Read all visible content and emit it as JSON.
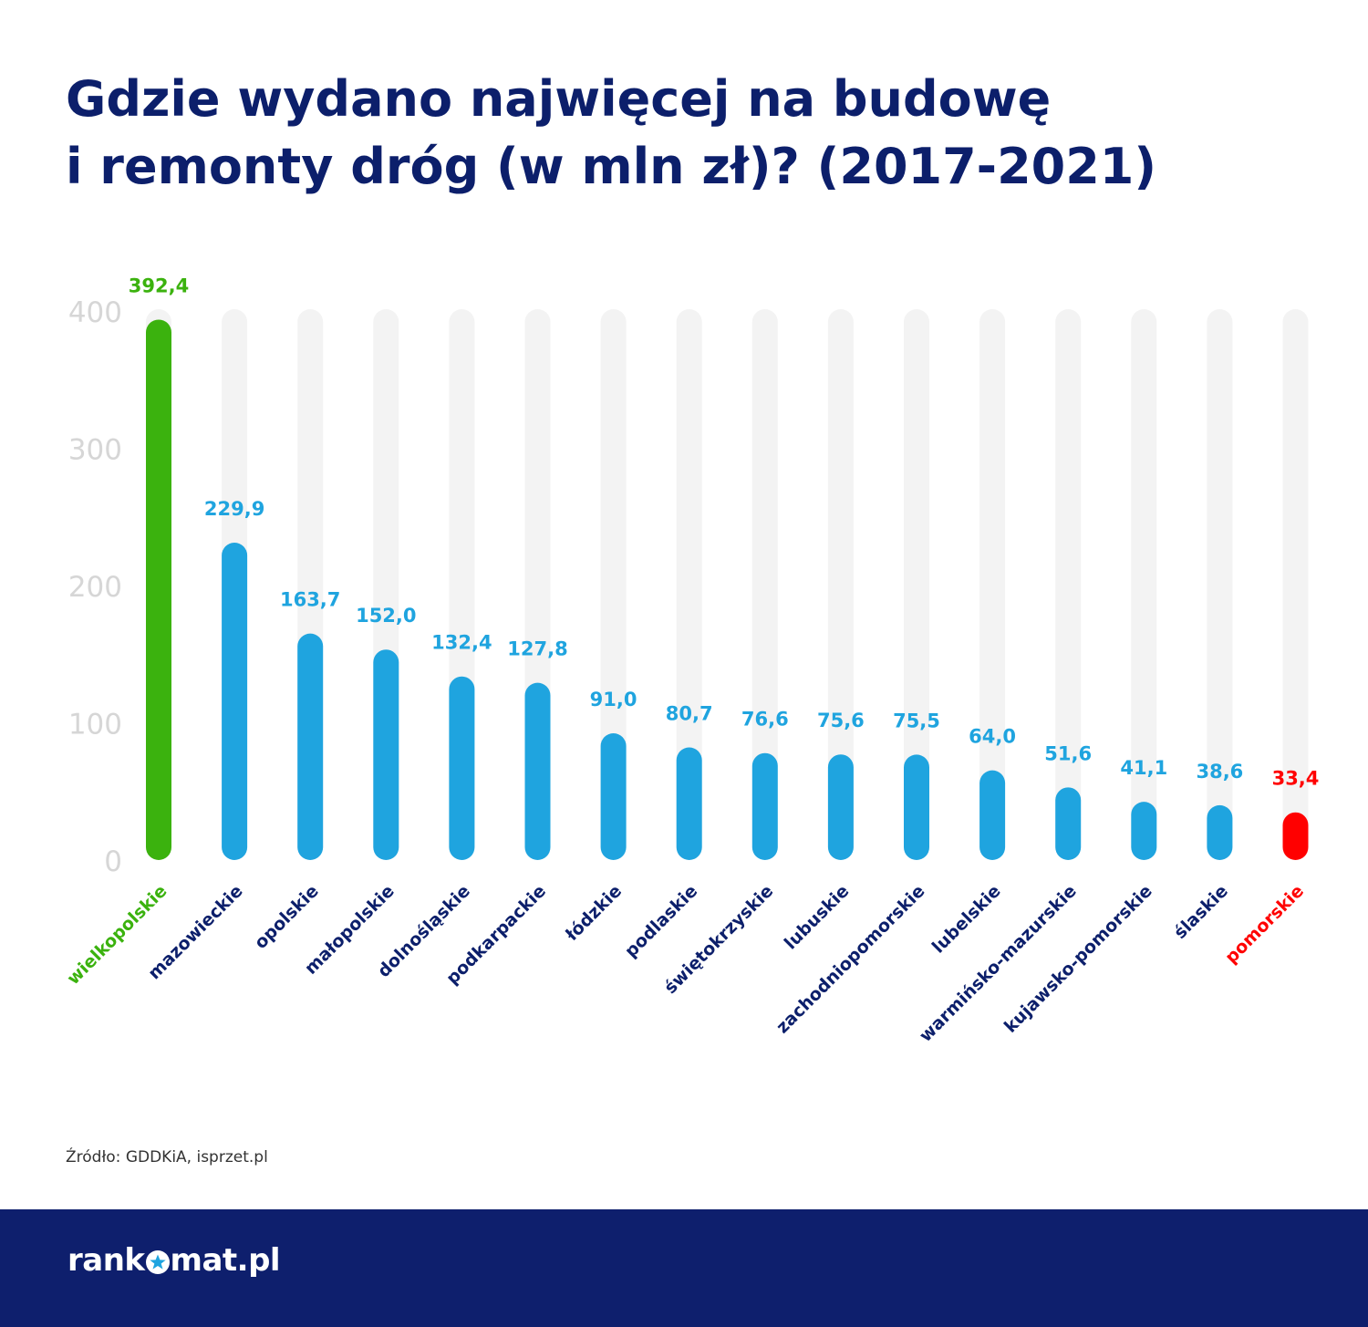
{
  "title": {
    "line1": "Gdzie wydano najwięcej na budowę",
    "line2": "i remonty dróg (w mln zł)? (2017-2021)"
  },
  "source": "Źródło: GDDKiA, isprzet.pl",
  "logo": {
    "text_before": "rank",
    "text_after": "mat.pl"
  },
  "colors": {
    "title": "#0c1f6b",
    "highest": "#3bb20e",
    "default": "#1fa4df",
    "lowest": "#ff0000",
    "category_label": "#0c1f6b",
    "track": "#f3f3f3",
    "axis_tick": "#d6d6d6",
    "footer": "#0e1f6d"
  },
  "chart_data": {
    "type": "bar",
    "ylim": [
      0,
      400
    ],
    "yticks": [
      0,
      100,
      200,
      300,
      400
    ],
    "categories": [
      "wielkopolskie",
      "mazowieckie",
      "opolskie",
      "małopolskie",
      "dolnośląskie",
      "podkarpackie",
      "łódzkie",
      "podlaskie",
      "świętokrzyskie",
      "lubuskie",
      "zachodniopomorskie",
      "lubelskie",
      "warmińsko-mazurskie",
      "kujawsko-pomorskie",
      "ślaskie",
      "pomorskie"
    ],
    "values": [
      392.4,
      229.9,
      163.7,
      152.0,
      132.4,
      127.8,
      91.0,
      80.7,
      76.6,
      75.6,
      75.5,
      64.0,
      51.6,
      41.1,
      38.6,
      33.4
    ],
    "value_labels": [
      "392,4",
      "229,9",
      "163,7",
      "152,0",
      "132,4",
      "127,8",
      "91,0",
      "80,7",
      "76,6",
      "75,6",
      "75,5",
      "64,0",
      "51,6",
      "41,1",
      "38,6",
      "33,4"
    ],
    "highlight": {
      "highest": "wielkopolskie",
      "lowest": "pomorskie"
    }
  }
}
